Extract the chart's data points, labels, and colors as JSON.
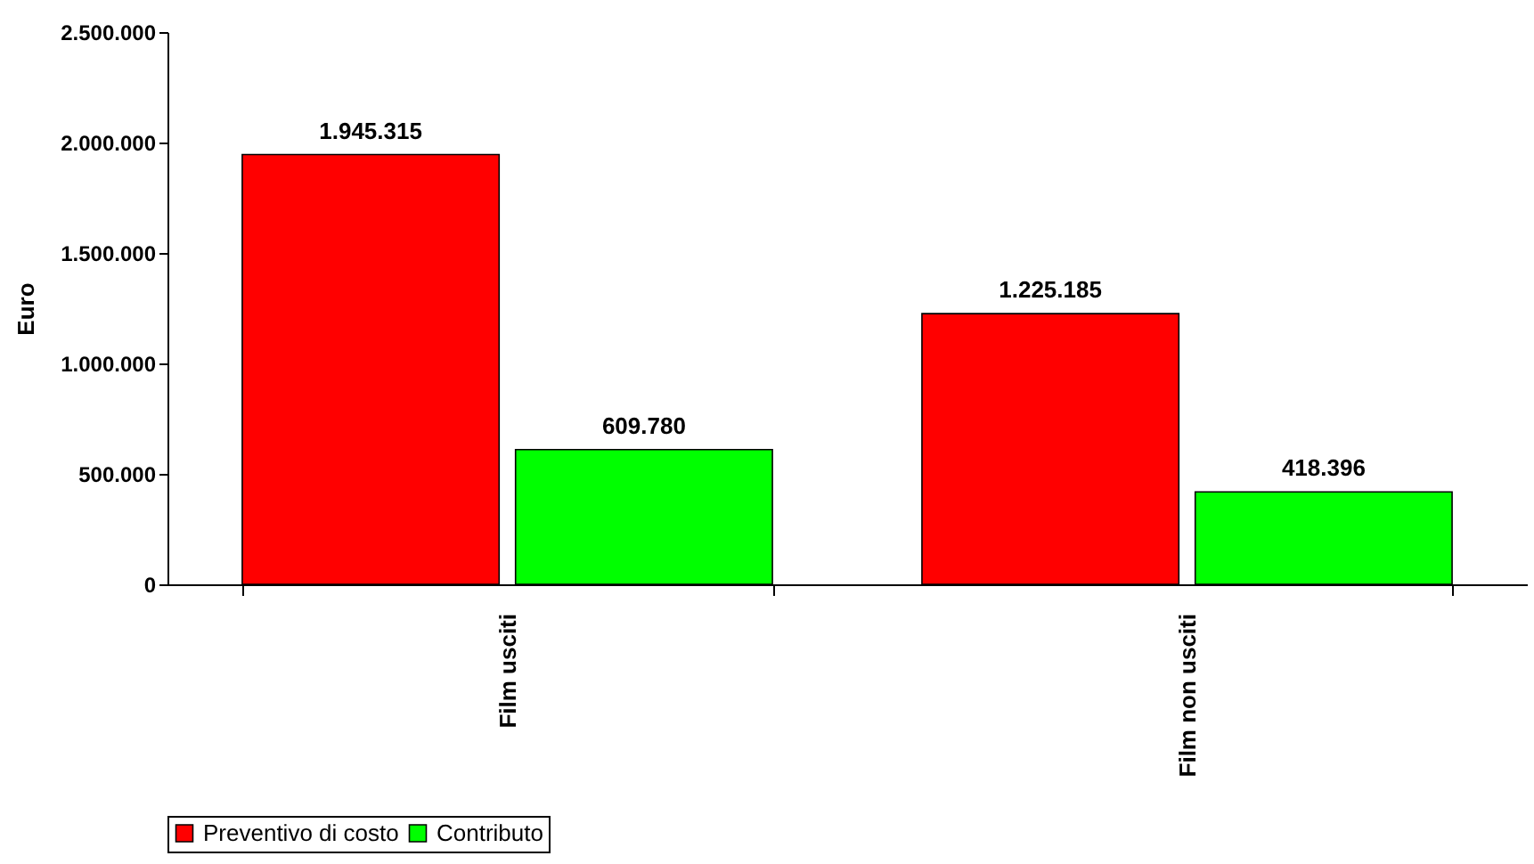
{
  "chart_data": {
    "type": "bar",
    "categories": [
      "Film usciti",
      "Film non usciti"
    ],
    "series": [
      {
        "name": "Preventivo di costo",
        "color": "#ff0000",
        "values": [
          1945315,
          1225185
        ],
        "value_labels": [
          "1.945.315",
          "1.225.185"
        ]
      },
      {
        "name": "Contributo",
        "color": "#00ff00",
        "values": [
          609780,
          418396
        ],
        "value_labels": [
          "609.780",
          "418.396"
        ]
      }
    ],
    "ylabel": "Euro",
    "ylim": [
      0,
      2500000
    ],
    "yticks": [
      {
        "value": 0,
        "label": "0"
      },
      {
        "value": 500000,
        "label": "500.000"
      },
      {
        "value": 1000000,
        "label": "1.000.000"
      },
      {
        "value": 1500000,
        "label": "1.500.000"
      },
      {
        "value": 2000000,
        "label": "2.000.000"
      },
      {
        "value": 2500000,
        "label": "2.500.000"
      }
    ],
    "grid": false,
    "legend": "bottom"
  }
}
